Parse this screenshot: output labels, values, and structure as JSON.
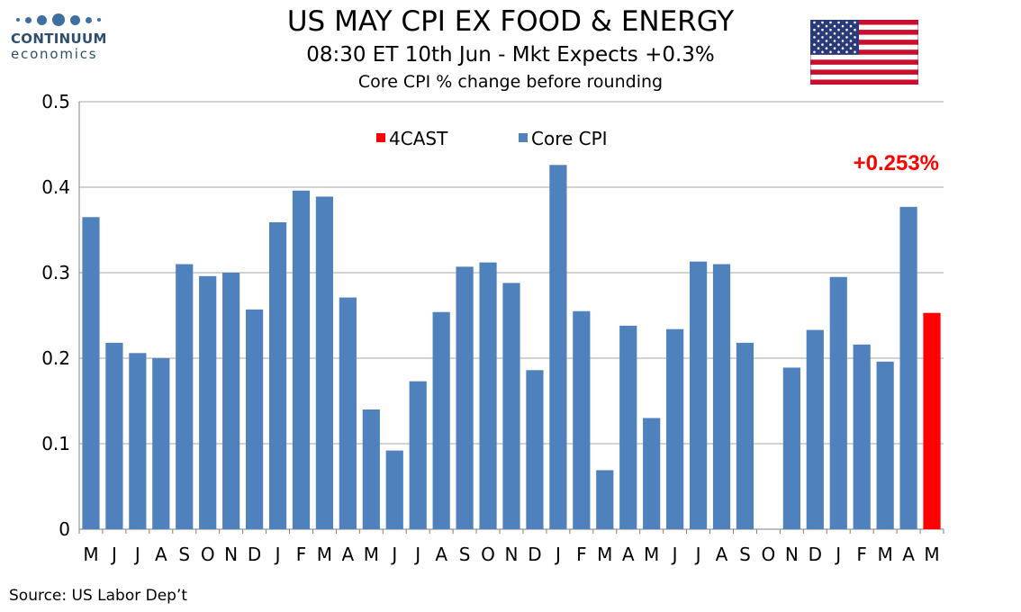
{
  "logo": {
    "name": "CONTINUUM",
    "sub": "economics"
  },
  "header": {
    "title": "US MAY CPI EX FOOD & ENERGY",
    "subtitle": "08:30 ET 10th Jun - Mkt Expects +0.3%",
    "subtitle2": "Core CPI % change before rounding"
  },
  "flag_icon": "us-flag-icon",
  "source": "Source: US Labor Dep’t",
  "colors": {
    "core_cpi": "#4f81bd",
    "forecast": "#ff0000",
    "grid": "#a6a6a6",
    "callout": "#ff0000"
  },
  "chart_data": {
    "type": "bar",
    "categories": [
      "M",
      "J",
      "J",
      "A",
      "S",
      "O",
      "N",
      "D",
      "J",
      "F",
      "M",
      "A",
      "M",
      "J",
      "J",
      "A",
      "S",
      "O",
      "N",
      "D",
      "J",
      "F",
      "M",
      "A",
      "M",
      "J",
      "J",
      "A",
      "S",
      "O",
      "N",
      "D",
      "J",
      "F",
      "M",
      "A",
      "M"
    ],
    "series": [
      {
        "name": "Core CPI",
        "values": [
          0.365,
          0.218,
          0.206,
          0.2,
          0.31,
          0.296,
          0.3,
          0.257,
          0.359,
          0.396,
          0.389,
          0.271,
          0.14,
          0.092,
          0.173,
          0.254,
          0.307,
          0.312,
          0.288,
          0.186,
          0.426,
          0.255,
          0.069,
          0.238,
          0.13,
          0.234,
          0.313,
          0.31,
          0.218,
          null,
          0.189,
          0.233,
          0.295,
          0.216,
          0.196,
          0.377,
          null
        ]
      },
      {
        "name": "4CAST",
        "values": [
          null,
          null,
          null,
          null,
          null,
          null,
          null,
          null,
          null,
          null,
          null,
          null,
          null,
          null,
          null,
          null,
          null,
          null,
          null,
          null,
          null,
          null,
          null,
          null,
          null,
          null,
          null,
          null,
          null,
          null,
          null,
          null,
          null,
          null,
          null,
          null,
          0.253
        ]
      }
    ],
    "ylim": [
      0,
      0.5
    ],
    "yticks": [
      0,
      0.1,
      0.2,
      0.3,
      0.4,
      0.5
    ],
    "ytick_labels": [
      "0",
      "0.1",
      "0.2",
      "0.3",
      "0.4",
      "0.5"
    ],
    "legend": [
      {
        "name": "4CAST",
        "color": "#ff0000"
      },
      {
        "name": "Core CPI",
        "color": "#4f81bd"
      }
    ],
    "legend_placement": "top-center",
    "grid": true,
    "annotation": {
      "text": "+0.253%",
      "category_index": 36
    }
  }
}
